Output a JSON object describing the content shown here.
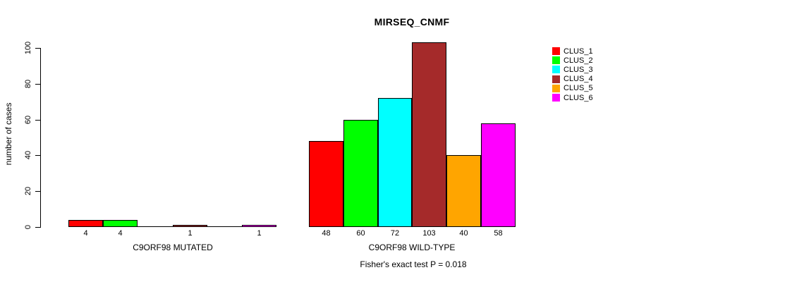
{
  "chart_data": {
    "type": "bar",
    "title": "MIRSEQ_CNMF",
    "ylabel": "number of cases",
    "xlabel": "",
    "ylim": [
      0,
      100
    ],
    "yticks": [
      0,
      20,
      40,
      60,
      80,
      100
    ],
    "grid": false,
    "legend_position": "right",
    "categories": [
      "C9ORF98 MUTATED",
      "C9ORF98 WILD-TYPE"
    ],
    "series": [
      {
        "name": "CLUS_1",
        "color": "#ff0000",
        "values": [
          4,
          48
        ]
      },
      {
        "name": "CLUS_2",
        "color": "#00ff00",
        "values": [
          4,
          60
        ]
      },
      {
        "name": "CLUS_3",
        "color": "#00ffff",
        "values": [
          0,
          72
        ]
      },
      {
        "name": "CLUS_4",
        "color": "#a52a2a",
        "values": [
          1,
          103
        ]
      },
      {
        "name": "CLUS_5",
        "color": "#ffa500",
        "values": [
          0,
          40
        ]
      },
      {
        "name": "CLUS_6",
        "color": "#ff00ff",
        "values": [
          1,
          58
        ]
      }
    ],
    "bar_value_labels_shown": true,
    "zero_value_labels_hidden": true,
    "annotation": "Fisher's exact test P = 0.018"
  }
}
